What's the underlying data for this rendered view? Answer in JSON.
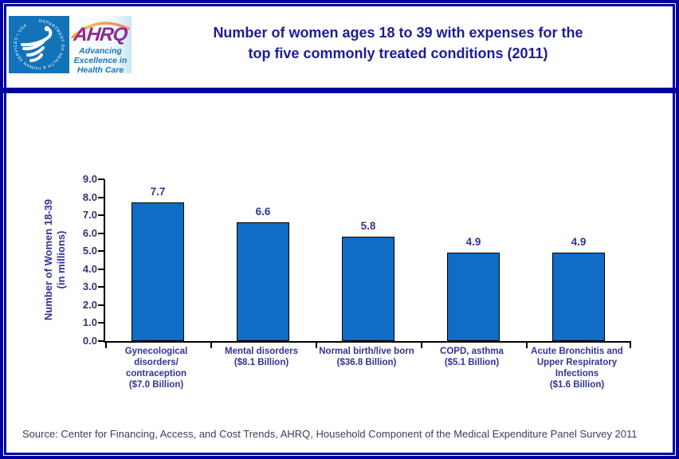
{
  "header": {
    "logo": {
      "seal_text": "DEPARTMENT OF HEALTH & HUMAN SERVICES • USA",
      "ahrq_acronym": "AHRQ",
      "tagline_line1": "Advancing",
      "tagline_line2": "Excellence in",
      "tagline_line3": "Health Care"
    },
    "title_line1": "Number of women ages 18 to 39 with expenses for the",
    "title_line2": "top five commonly treated conditions (2011)"
  },
  "chart_data": {
    "type": "bar",
    "title": "Number of women ages 18 to 39 with expenses for the top five commonly treated conditions (2011)",
    "categories": [
      "Gynecological disorders/ contraception ($7.0 Billion)",
      "Mental disorders ($8.1 Billion)",
      "Normal birth/live born ($36.8 Billion)",
      "COPD, asthma ($5.1 Billion)",
      "Acute Bronchitis and Upper Respiratory Infections ($1.6 Billion)"
    ],
    "category_label_lines": [
      [
        "Gynecological",
        "disorders/",
        "contraception",
        "($7.0 Billion)"
      ],
      [
        "Mental disorders",
        "($8.1 Billion)"
      ],
      [
        "Normal birth/live born",
        "($36.8 Billion)"
      ],
      [
        "COPD, asthma",
        "($5.1 Billion)"
      ],
      [
        "Acute Bronchitis and",
        "Upper Respiratory",
        "Infections",
        "($1.6 Billion)"
      ]
    ],
    "values": [
      7.7,
      6.6,
      5.8,
      4.9,
      4.9
    ],
    "value_labels": [
      "7.7",
      "6.6",
      "5.8",
      "4.9",
      "4.9"
    ],
    "xlabel": "",
    "ylabel_line1": "Number of Women 18-39",
    "ylabel_line2": "(in millions)",
    "ylim": [
      0,
      9
    ],
    "yticks": [
      "9.0",
      "8.0",
      "7.0",
      "6.0",
      "5.0",
      "4.0",
      "3.0",
      "2.0",
      "1.0",
      "0.0"
    ],
    "grid": false,
    "legend": "none",
    "bar_color": "#106CC4"
  },
  "source": "Source: Center for Financing, Access, and Cost Trends, AHRQ, Household Component of the Medical Expenditure Panel Survey 2011",
  "colors": {
    "frame_navy": "#0000A0",
    "title_text": "#1C1C99",
    "bar_fill": "#106CC4",
    "axis_label_indigo": "#333399",
    "hhs_seal_blue": "#1273B8",
    "ahrq_purple": "#93278F",
    "ahrq_tagline_blue": "#1B75BC",
    "arc_orange": "#F5A83C"
  }
}
